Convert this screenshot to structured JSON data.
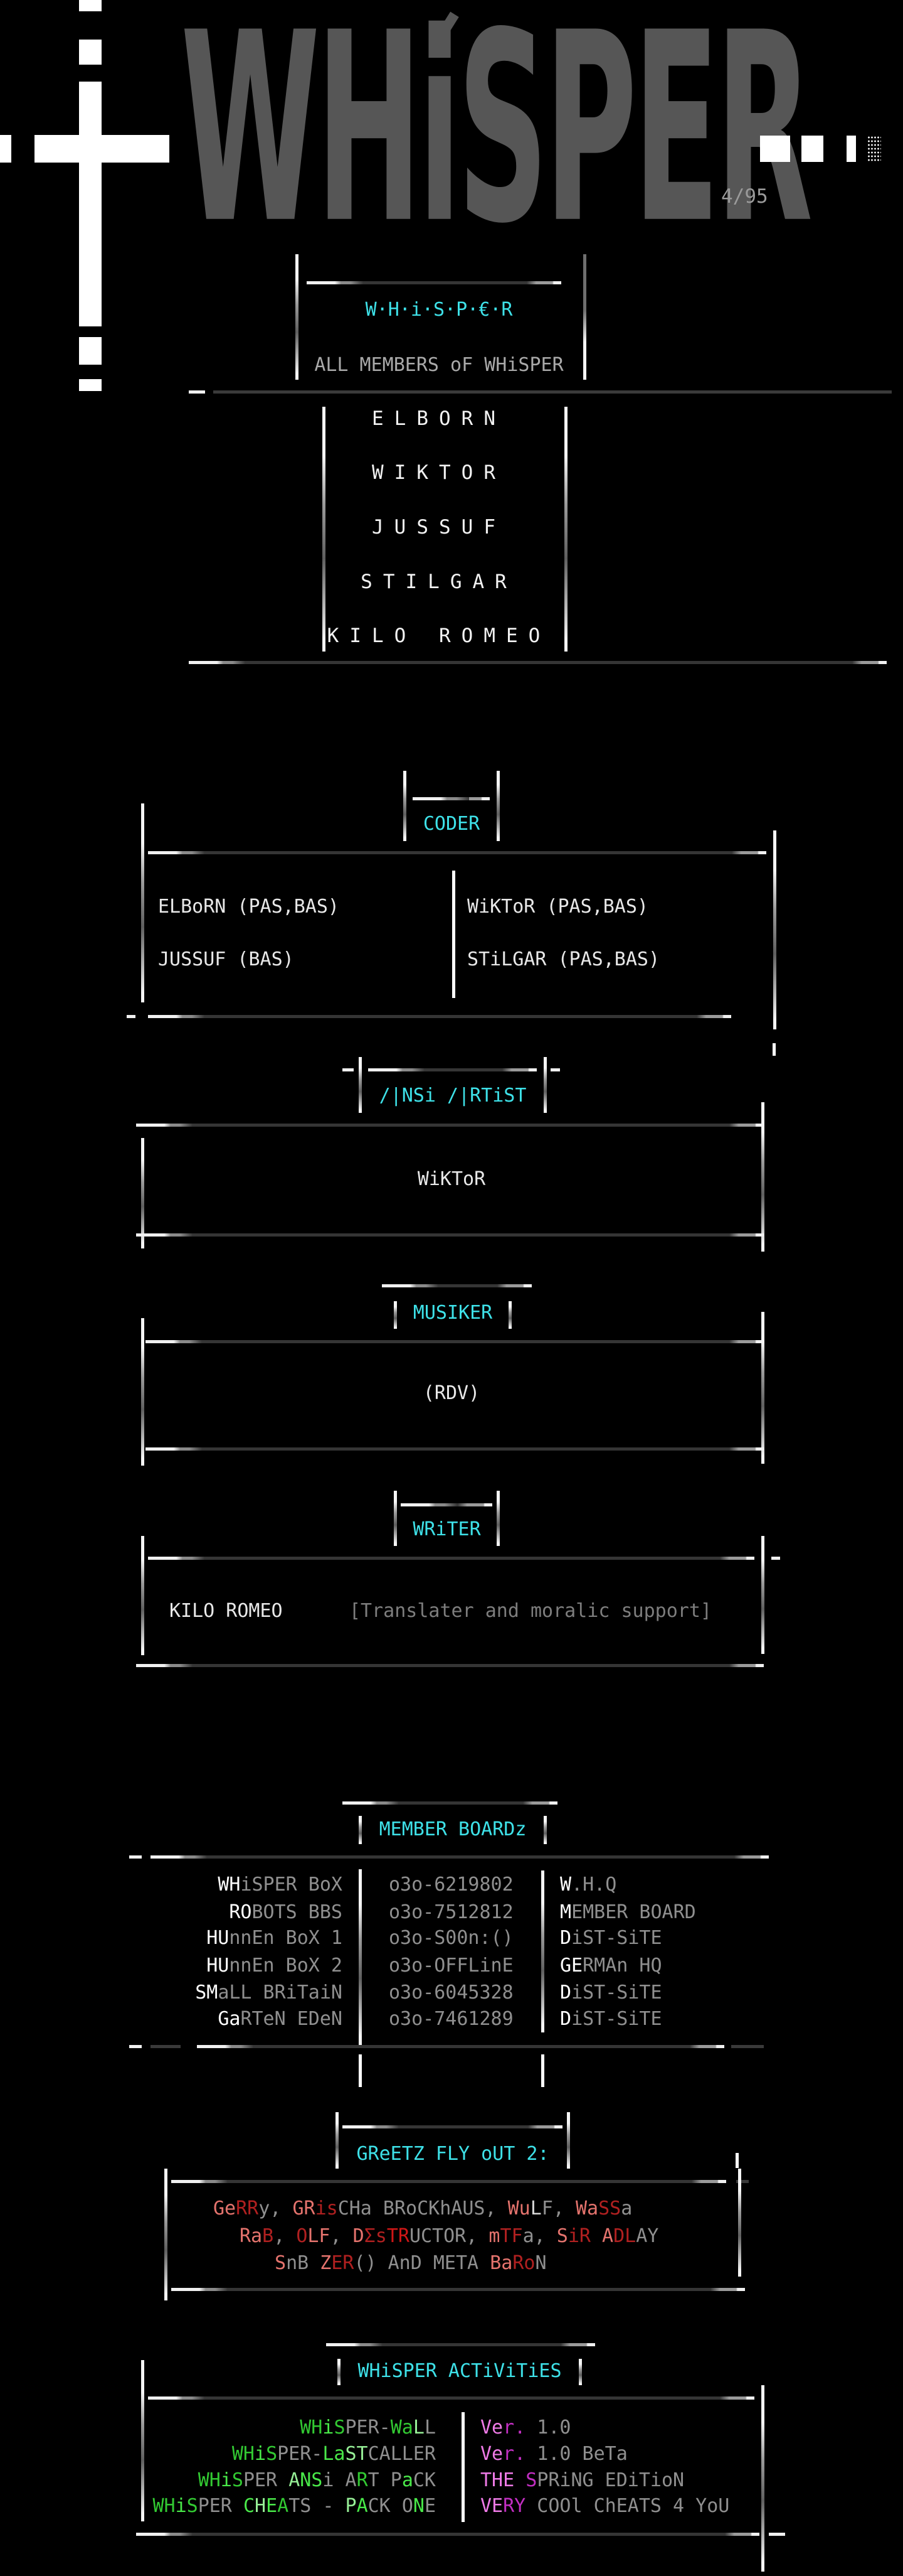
{
  "header": {
    "logo_text": "WHiSPER",
    "issue_label": "4/95"
  },
  "members_panel": {
    "title": "W·H·i·S·P·€·R",
    "subtitle": "ALL MEMBERS oF WHiSPER",
    "members": [
      "ELBORN",
      "WIKTOR",
      "JUSSUF",
      "STILGAR",
      "KILO ROMEO"
    ]
  },
  "coder": {
    "title": "CODER",
    "left_entries": [
      "ELBoRN (PAS,BAS)",
      "JUSSUF (BAS)"
    ],
    "right_entries": [
      "WiKToR (PAS,BAS)",
      "STiLGAR (PAS,BAS)"
    ]
  },
  "ansi_artist": {
    "title": "/|NSi /|RTiST",
    "entry": "WiKToR"
  },
  "musiker": {
    "title": "MUSIKER",
    "entry": "(RDV)"
  },
  "writer": {
    "title": "WRiTER",
    "entry": "KILO ROMEO",
    "note": "[Translater and moralic support]"
  },
  "member_boards": {
    "title": "MEMBER BOARDz",
    "rows": [
      {
        "name_hi": "WH",
        "name_rest": "iSPER BoX",
        "phone": "o3o-6219802",
        "role_hi": "W",
        "role_rest": ".H.Q"
      },
      {
        "name_hi": "RO",
        "name_rest": "BOTS BBS",
        "phone": "o3o-7512812",
        "role_hi": "M",
        "role_rest": "EMBER BOARD"
      },
      {
        "name_hi": "HU",
        "name_rest": "nnEn BoX 1",
        "phone": "o3o-S00n:()",
        "role_hi": "D",
        "role_rest": "iST-SiTE"
      },
      {
        "name_hi": "HU",
        "name_rest": "nnEn BoX 2",
        "phone": "o3o-OFFLinE",
        "role_hi": "GE",
        "role_rest": "RMAn HQ"
      },
      {
        "name_hi": "SM",
        "name_rest": "aLL BRiTaiN",
        "phone": "o3o-6045328",
        "role_hi": "D",
        "role_rest": "iST-SiTE"
      },
      {
        "name_hi": "Ga",
        "name_rest": "RTeN EDeN",
        "phone": "o3o-7461289",
        "role_hi": "D",
        "role_rest": "iST-SiTE"
      }
    ]
  },
  "greetz": {
    "title": "GReETZ FLY oUT 2:",
    "lines": [
      [
        {
          "t": "Ge",
          "c": "r1"
        },
        {
          "t": "RR",
          "c": "r2"
        },
        {
          "t": "y, ",
          "c": "gy"
        },
        {
          "t": "GR",
          "c": "r1"
        },
        {
          "t": "is",
          "c": "r2"
        },
        {
          "t": "CHa BRoCKhAUS, ",
          "c": "gy"
        },
        {
          "t": "Wu",
          "c": "r1"
        },
        {
          "t": "L",
          "c": "wt"
        },
        {
          "t": "F, ",
          "c": "gy"
        },
        {
          "t": "Wa",
          "c": "r1"
        },
        {
          "t": "SS",
          "c": "r2"
        },
        {
          "t": "a",
          "c": "gy"
        }
      ],
      [
        {
          "t": "Ra",
          "c": "r1"
        },
        {
          "t": "B",
          "c": "r2"
        },
        {
          "t": ", ",
          "c": "gy"
        },
        {
          "t": "O",
          "c": "r2"
        },
        {
          "t": "LF",
          "c": "r1"
        },
        {
          "t": ", ",
          "c": "gy"
        },
        {
          "t": "D",
          "c": "r1"
        },
        {
          "t": "Σs",
          "c": "r2"
        },
        {
          "t": "TR",
          "c": "r3"
        },
        {
          "t": "UCTOR, ",
          "c": "gy"
        },
        {
          "t": "m",
          "c": "r1"
        },
        {
          "t": "TF",
          "c": "r2"
        },
        {
          "t": "a, ",
          "c": "gy"
        },
        {
          "t": "S",
          "c": "r1"
        },
        {
          "t": "iR ",
          "c": "r2"
        },
        {
          "t": "A",
          "c": "r1"
        },
        {
          "t": "DL",
          "c": "r2"
        },
        {
          "t": "AY",
          "c": "gy"
        }
      ],
      [
        {
          "t": "S",
          "c": "r1"
        },
        {
          "t": "nB ",
          "c": "gy"
        },
        {
          "t": "Z",
          "c": "r1"
        },
        {
          "t": "ER",
          "c": "r2"
        },
        {
          "t": "() ",
          "c": "gy"
        },
        {
          "t": "AnD META ",
          "c": "gy"
        },
        {
          "t": "Ba",
          "c": "r1"
        },
        {
          "t": "Ro",
          "c": "r2"
        },
        {
          "t": "N",
          "c": "gy"
        }
      ]
    ]
  },
  "activities": {
    "title": "WHiSPER ACTiViTiES",
    "rows": [
      {
        "left": [
          {
            "t": "WH",
            "c": "g1"
          },
          {
            "t": "i",
            "c": "g2"
          },
          {
            "t": "S",
            "c": "g1"
          },
          {
            "t": "PER-",
            "c": "gy"
          },
          {
            "t": "Wa",
            "c": "g1"
          },
          {
            "t": "L",
            "c": "g3"
          },
          {
            "t": "L",
            "c": "gy"
          }
        ],
        "right": [
          {
            "t": "Ve",
            "c": "m1"
          },
          {
            "t": "r.",
            "c": "m2"
          },
          {
            "t": " 1.0",
            "c": "gy"
          }
        ]
      },
      {
        "left": [
          {
            "t": "WH",
            "c": "g1"
          },
          {
            "t": "i",
            "c": "g2"
          },
          {
            "t": "S",
            "c": "g1"
          },
          {
            "t": "PER-",
            "c": "gy"
          },
          {
            "t": "La",
            "c": "g2"
          },
          {
            "t": "ST",
            "c": "g3"
          },
          {
            "t": "CALLER",
            "c": "gy"
          }
        ],
        "right": [
          {
            "t": "Ve",
            "c": "m1"
          },
          {
            "t": "r.",
            "c": "m2"
          },
          {
            "t": " 1.0 BeTa",
            "c": "gy"
          }
        ]
      },
      {
        "left": [
          {
            "t": "WH",
            "c": "g1"
          },
          {
            "t": "i",
            "c": "g2"
          },
          {
            "t": "S",
            "c": "g1"
          },
          {
            "t": "PER ",
            "c": "gy"
          },
          {
            "t": "A",
            "c": "g3"
          },
          {
            "t": "NS",
            "c": "g2"
          },
          {
            "t": "i ",
            "c": "gy"
          },
          {
            "t": "A",
            "c": "gy"
          },
          {
            "t": "R",
            "c": "g1"
          },
          {
            "t": "T ",
            "c": "gy"
          },
          {
            "t": "P",
            "c": "gy"
          },
          {
            "t": "a",
            "c": "g2"
          },
          {
            "t": "CK",
            "c": "gy"
          }
        ],
        "right": [
          {
            "t": "TH",
            "c": "m1"
          },
          {
            "t": "E ",
            "c": "m1"
          },
          {
            "t": "S",
            "c": "m2"
          },
          {
            "t": "PRiNG EDiTioN",
            "c": "gy"
          }
        ]
      },
      {
        "left": [
          {
            "t": "WH",
            "c": "g1"
          },
          {
            "t": "i",
            "c": "g2"
          },
          {
            "t": "S",
            "c": "g1"
          },
          {
            "t": "PER ",
            "c": "gy"
          },
          {
            "t": "C",
            "c": "g2"
          },
          {
            "t": "H",
            "c": "g3"
          },
          {
            "t": "E",
            "c": "g2"
          },
          {
            "t": "A",
            "c": "g1"
          },
          {
            "t": "TS - ",
            "c": "gy"
          },
          {
            "t": "P",
            "c": "g3"
          },
          {
            "t": "A",
            "c": "g2"
          },
          {
            "t": "CK ",
            "c": "gy"
          },
          {
            "t": "O",
            "c": "gy"
          },
          {
            "t": "N",
            "c": "g2"
          },
          {
            "t": "E",
            "c": "gy"
          }
        ],
        "right": [
          {
            "t": "VE",
            "c": "m1"
          },
          {
            "t": "RY",
            "c": "m2"
          },
          {
            "t": " COOl ChEATS 4 YoU",
            "c": "gy"
          }
        ]
      }
    ]
  },
  "accent_colors": {
    "cyan": "#3ee1e8",
    "logo_gray": "#565656",
    "bright_white": "#ffffff",
    "dim_gray": "#8f8f8f",
    "red_light": "#e4736d",
    "red_dark": "#b02020",
    "green": "#32c932",
    "green_bright": "#49e849",
    "green_pale": "#96ee96",
    "magenta_light": "#ee7ae6",
    "magenta": "#c22ec2"
  }
}
